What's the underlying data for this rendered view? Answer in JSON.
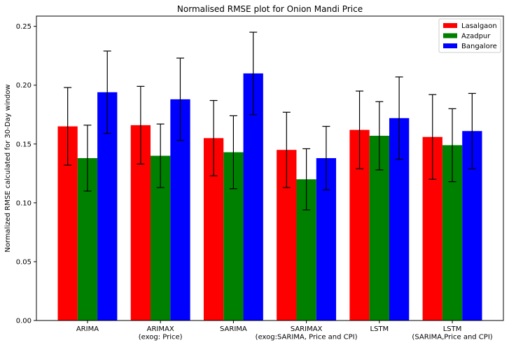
{
  "chart_data": {
    "type": "bar",
    "title": "Normalised RMSE plot for Onion Mandi Price",
    "xlabel": "",
    "ylabel": "Normalized RMSE calculated for 30-Day window",
    "ylim": [
      0,
      0.26
    ],
    "yticks": [
      "0.00",
      "0.05",
      "0.10",
      "0.15",
      "0.20",
      "0.25"
    ],
    "ytick_values": [
      0,
      0.05,
      0.1,
      0.15,
      0.2,
      0.25
    ],
    "grid": false,
    "legend_placement": "top-right",
    "categories": [
      [
        "ARIMA"
      ],
      [
        "ARIMAX",
        "(exog: Price)"
      ],
      [
        "SARIMA"
      ],
      [
        "SARIMAX",
        "(exog:SARIMA, Price and CPI)"
      ],
      [
        "LSTM"
      ],
      [
        "LSTM",
        "(SARIMA,Price and CPI)"
      ]
    ],
    "series": [
      {
        "name": "Lasalgaon",
        "color": "#ff0000",
        "values": [
          0.165,
          0.166,
          0.155,
          0.145,
          0.162,
          0.156
        ],
        "errors": [
          0.033,
          0.033,
          0.032,
          0.032,
          0.033,
          0.036
        ]
      },
      {
        "name": "Azadpur",
        "color": "#008000",
        "values": [
          0.138,
          0.14,
          0.143,
          0.12,
          0.157,
          0.149
        ],
        "errors": [
          0.028,
          0.027,
          0.031,
          0.026,
          0.029,
          0.031
        ]
      },
      {
        "name": "Bangalore",
        "color": "#0000ff",
        "values": [
          0.194,
          0.188,
          0.21,
          0.138,
          0.172,
          0.161
        ],
        "errors": [
          0.035,
          0.035,
          0.035,
          0.027,
          0.035,
          0.032
        ]
      }
    ]
  }
}
